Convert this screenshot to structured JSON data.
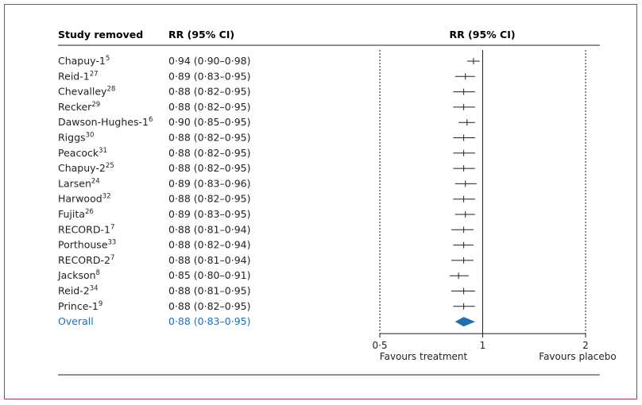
{
  "chart_data": {
    "type": "forest",
    "headers": {
      "study": "Study removed",
      "ci": "RR (95% CI)",
      "plot": "RR (95% CI)"
    },
    "x_scale": "log",
    "xlim": [
      0.5,
      2
    ],
    "x_ticks": [
      {
        "value": 0.5,
        "label": "0·5"
      },
      {
        "value": 1,
        "label": "1"
      },
      {
        "value": 2,
        "label": "2"
      }
    ],
    "favours_left": "Favours treatment",
    "favours_right": "Favours placebo",
    "rows": [
      {
        "name": "Chapuy-1",
        "sup": "5",
        "ci_text": "0·94 (0·90–0·98)",
        "rr": 0.94,
        "lo": 0.9,
        "hi": 0.98
      },
      {
        "name": "Reid-1",
        "sup": "27",
        "ci_text": "0·89 (0·83–0·95)",
        "rr": 0.89,
        "lo": 0.83,
        "hi": 0.95
      },
      {
        "name": "Chevalley",
        "sup": "28",
        "ci_text": "0·88 (0·82–0·95)",
        "rr": 0.88,
        "lo": 0.82,
        "hi": 0.95
      },
      {
        "name": "Recker",
        "sup": "29",
        "ci_text": "0·88 (0·82–0·95)",
        "rr": 0.88,
        "lo": 0.82,
        "hi": 0.95
      },
      {
        "name": "Dawson-Hughes-1",
        "sup": "6",
        "ci_text": "0·90 (0·85–0·95)",
        "rr": 0.9,
        "lo": 0.85,
        "hi": 0.95
      },
      {
        "name": "Riggs",
        "sup": "30",
        "ci_text": "0·88 (0·82–0·95)",
        "rr": 0.88,
        "lo": 0.82,
        "hi": 0.95
      },
      {
        "name": "Peacock",
        "sup": "31",
        "ci_text": "0·88 (0·82–0·95)",
        "rr": 0.88,
        "lo": 0.82,
        "hi": 0.95
      },
      {
        "name": "Chapuy-2",
        "sup": "25",
        "ci_text": "0·88 (0·82–0·95)",
        "rr": 0.88,
        "lo": 0.82,
        "hi": 0.95
      },
      {
        "name": "Larsen",
        "sup": "24",
        "ci_text": "0·89 (0·83–0·96)",
        "rr": 0.89,
        "lo": 0.83,
        "hi": 0.96
      },
      {
        "name": "Harwood",
        "sup": "32",
        "ci_text": "0·88 (0·82–0·95)",
        "rr": 0.88,
        "lo": 0.82,
        "hi": 0.95
      },
      {
        "name": "Fujita",
        "sup": "26",
        "ci_text": "0·89 (0·83–0·95)",
        "rr": 0.89,
        "lo": 0.83,
        "hi": 0.95
      },
      {
        "name": "RECORD-1",
        "sup": "7",
        "ci_text": "0·88 (0·81–0·94)",
        "rr": 0.88,
        "lo": 0.81,
        "hi": 0.94
      },
      {
        "name": "Porthouse",
        "sup": "33",
        "ci_text": "0·88 (0·82–0·94)",
        "rr": 0.88,
        "lo": 0.82,
        "hi": 0.94
      },
      {
        "name": "RECORD-2",
        "sup": "7",
        "ci_text": "0·88 (0·81–0·94)",
        "rr": 0.88,
        "lo": 0.81,
        "hi": 0.94
      },
      {
        "name": "Jackson",
        "sup": "8",
        "ci_text": "0·85 (0·80–0·91)",
        "rr": 0.85,
        "lo": 0.8,
        "hi": 0.91
      },
      {
        "name": "Reid-2",
        "sup": "34",
        "ci_text": "0·88 (0·81–0·95)",
        "rr": 0.88,
        "lo": 0.81,
        "hi": 0.95
      },
      {
        "name": "Prince-1",
        "sup": "9",
        "ci_text": "0·88 (0·82–0·95)",
        "rr": 0.88,
        "lo": 0.82,
        "hi": 0.95
      }
    ],
    "overall": {
      "name": "Overall",
      "ci_text": "0·88 (0·83–0·95)",
      "rr": 0.88,
      "lo": 0.83,
      "hi": 0.95
    },
    "colors": {
      "frame": "#b0336a",
      "text": "#231f20",
      "overall": "#1f6fb5",
      "rule": "#231f20"
    }
  }
}
